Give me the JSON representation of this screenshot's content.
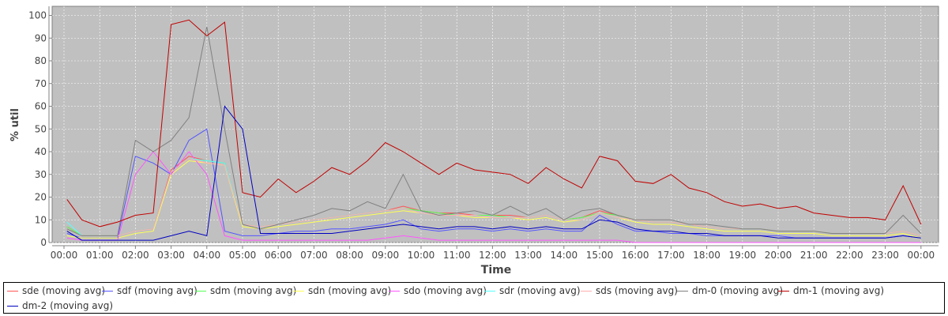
{
  "chart_data": {
    "type": "line",
    "xlabel": "Time",
    "ylabel": "% util",
    "ylim": [
      0,
      104
    ],
    "yticks": [
      "0",
      "10",
      "20",
      "30",
      "40",
      "50",
      "60",
      "70",
      "80",
      "90",
      "100"
    ],
    "xticks": [
      "00:00",
      "01:00",
      "02:00",
      "03:00",
      "04:00",
      "05:00",
      "06:00",
      "07:00",
      "08:00",
      "09:00",
      "10:00",
      "11:00",
      "12:00",
      "13:00",
      "14:00",
      "15:00",
      "16:00",
      "17:00",
      "18:00",
      "19:00",
      "20:00",
      "21:00",
      "22:00",
      "23:00",
      "00:00"
    ],
    "grid": true,
    "legend_position": "bottom",
    "x": [
      "00:05",
      "00:30",
      "01:00",
      "01:30",
      "02:00",
      "02:30",
      "03:00",
      "03:30",
      "04:00",
      "04:30",
      "05:00",
      "05:30",
      "06:00",
      "06:30",
      "07:00",
      "07:30",
      "08:00",
      "08:30",
      "09:00",
      "09:30",
      "10:00",
      "10:30",
      "11:00",
      "11:30",
      "12:00",
      "12:30",
      "13:00",
      "13:30",
      "14:00",
      "14:30",
      "15:00",
      "15:30",
      "16:00",
      "16:30",
      "17:00",
      "17:30",
      "18:00",
      "18:30",
      "19:00",
      "19:30",
      "20:00",
      "20:30",
      "21:00",
      "21:30",
      "22:00",
      "22:30",
      "23:00",
      "23:30",
      "24:00"
    ],
    "series": [
      {
        "name": "sde (moving avg)",
        "color": "#ff5555",
        "values": [
          7,
          3,
          3,
          3,
          5,
          6,
          32,
          38,
          36,
          35,
          8,
          7,
          8,
          9,
          10,
          11,
          12,
          13,
          14,
          16,
          14,
          13,
          13,
          12,
          12,
          12,
          11,
          12,
          10,
          11,
          14,
          12,
          10,
          9,
          9,
          8,
          7,
          6,
          6,
          6,
          5,
          5,
          5,
          4,
          4,
          4,
          4,
          5,
          3
        ]
      },
      {
        "name": "sdf (moving avg)",
        "color": "#5555ff",
        "values": [
          4,
          2,
          2,
          2,
          38,
          35,
          30,
          45,
          50,
          5,
          3,
          3,
          4,
          5,
          5,
          6,
          6,
          7,
          8,
          10,
          6,
          5,
          6,
          6,
          5,
          6,
          5,
          6,
          5,
          5,
          12,
          8,
          5,
          5,
          4,
          4,
          3,
          3,
          3,
          3,
          3,
          2,
          2,
          2,
          2,
          2,
          2,
          3,
          2
        ]
      },
      {
        "name": "sdm (moving avg)",
        "color": "#55ff55",
        "values": [
          7,
          3,
          3,
          3,
          5,
          6,
          31,
          37,
          36,
          35,
          8,
          7,
          8,
          9,
          10,
          11,
          12,
          13,
          14,
          15,
          14,
          13,
          12,
          12,
          12,
          11,
          11,
          12,
          10,
          11,
          13,
          12,
          10,
          9,
          9,
          8,
          7,
          6,
          6,
          6,
          5,
          5,
          5,
          4,
          4,
          4,
          4,
          5,
          3
        ]
      },
      {
        "name": "sdn (moving avg)",
        "color": "#ffff55",
        "values": [
          3,
          2,
          2,
          2,
          4,
          5,
          30,
          36,
          35,
          34,
          7,
          6,
          7,
          8,
          9,
          10,
          11,
          12,
          13,
          14,
          13,
          12,
          12,
          11,
          11,
          11,
          10,
          11,
          9,
          10,
          13,
          11,
          9,
          8,
          8,
          7,
          6,
          5,
          5,
          5,
          4,
          4,
          4,
          3,
          3,
          3,
          3,
          4,
          2
        ]
      },
      {
        "name": "sdo (moving avg)",
        "color": "#ff55ff",
        "values": [
          2,
          1,
          1,
          1,
          30,
          40,
          30,
          40,
          30,
          3,
          1,
          1,
          1,
          1,
          1,
          1,
          1,
          1,
          2,
          3,
          2,
          1,
          1,
          1,
          1,
          1,
          1,
          1,
          1,
          1,
          1,
          1,
          0,
          0,
          0,
          0,
          0,
          0,
          0,
          0,
          0,
          0,
          0,
          0,
          0,
          0,
          0,
          0,
          0
        ]
      },
      {
        "name": "sdr (moving avg)",
        "color": "#55ffff",
        "values": [
          9,
          3,
          3,
          3,
          5,
          6,
          31,
          37,
          36,
          35,
          8,
          7,
          8,
          9,
          10,
          11,
          12,
          13,
          14,
          15,
          13,
          12,
          12,
          12,
          11,
          11,
          11,
          12,
          10,
          10,
          13,
          11,
          10,
          9,
          9,
          8,
          7,
          6,
          6,
          6,
          5,
          5,
          5,
          4,
          4,
          4,
          4,
          5,
          3
        ]
      },
      {
        "name": "sds (moving avg)",
        "color": "#ffafaf",
        "values": [
          6,
          3,
          3,
          3,
          5,
          6,
          31,
          37,
          35,
          34,
          8,
          7,
          8,
          9,
          10,
          11,
          12,
          13,
          14,
          15,
          13,
          12,
          12,
          12,
          11,
          11,
          11,
          12,
          10,
          10,
          13,
          11,
          10,
          9,
          9,
          8,
          7,
          6,
          6,
          6,
          5,
          5,
          5,
          4,
          4,
          4,
          4,
          5,
          3
        ]
      },
      {
        "name": "dm-0 (moving avg)",
        "color": "#808080",
        "values": [
          6,
          3,
          3,
          3,
          45,
          40,
          45,
          55,
          95,
          50,
          8,
          6,
          8,
          10,
          12,
          15,
          14,
          18,
          15,
          30,
          14,
          12,
          13,
          14,
          12,
          16,
          12,
          15,
          10,
          14,
          15,
          12,
          10,
          10,
          10,
          8,
          8,
          7,
          6,
          6,
          5,
          5,
          5,
          4,
          4,
          4,
          4,
          12,
          4
        ]
      },
      {
        "name": "dm-1 (moving avg)",
        "color": "#c00000",
        "values": [
          19,
          10,
          7,
          9,
          12,
          13,
          96,
          98,
          91,
          97,
          22,
          20,
          28,
          22,
          27,
          33,
          30,
          36,
          44,
          40,
          35,
          30,
          35,
          32,
          31,
          30,
          26,
          33,
          28,
          24,
          38,
          36,
          27,
          26,
          30,
          24,
          22,
          18,
          16,
          17,
          15,
          16,
          13,
          12,
          11,
          11,
          10,
          25,
          8
        ]
      },
      {
        "name": "dm-2 (moving avg)",
        "color": "#0000c0",
        "values": [
          5,
          1,
          1,
          1,
          1,
          1,
          3,
          5,
          3,
          60,
          50,
          4,
          4,
          4,
          4,
          4,
          5,
          6,
          7,
          8,
          7,
          6,
          7,
          7,
          6,
          7,
          6,
          7,
          6,
          6,
          10,
          9,
          6,
          5,
          5,
          4,
          4,
          3,
          3,
          3,
          2,
          2,
          2,
          2,
          2,
          2,
          2,
          3,
          2
        ]
      }
    ]
  }
}
